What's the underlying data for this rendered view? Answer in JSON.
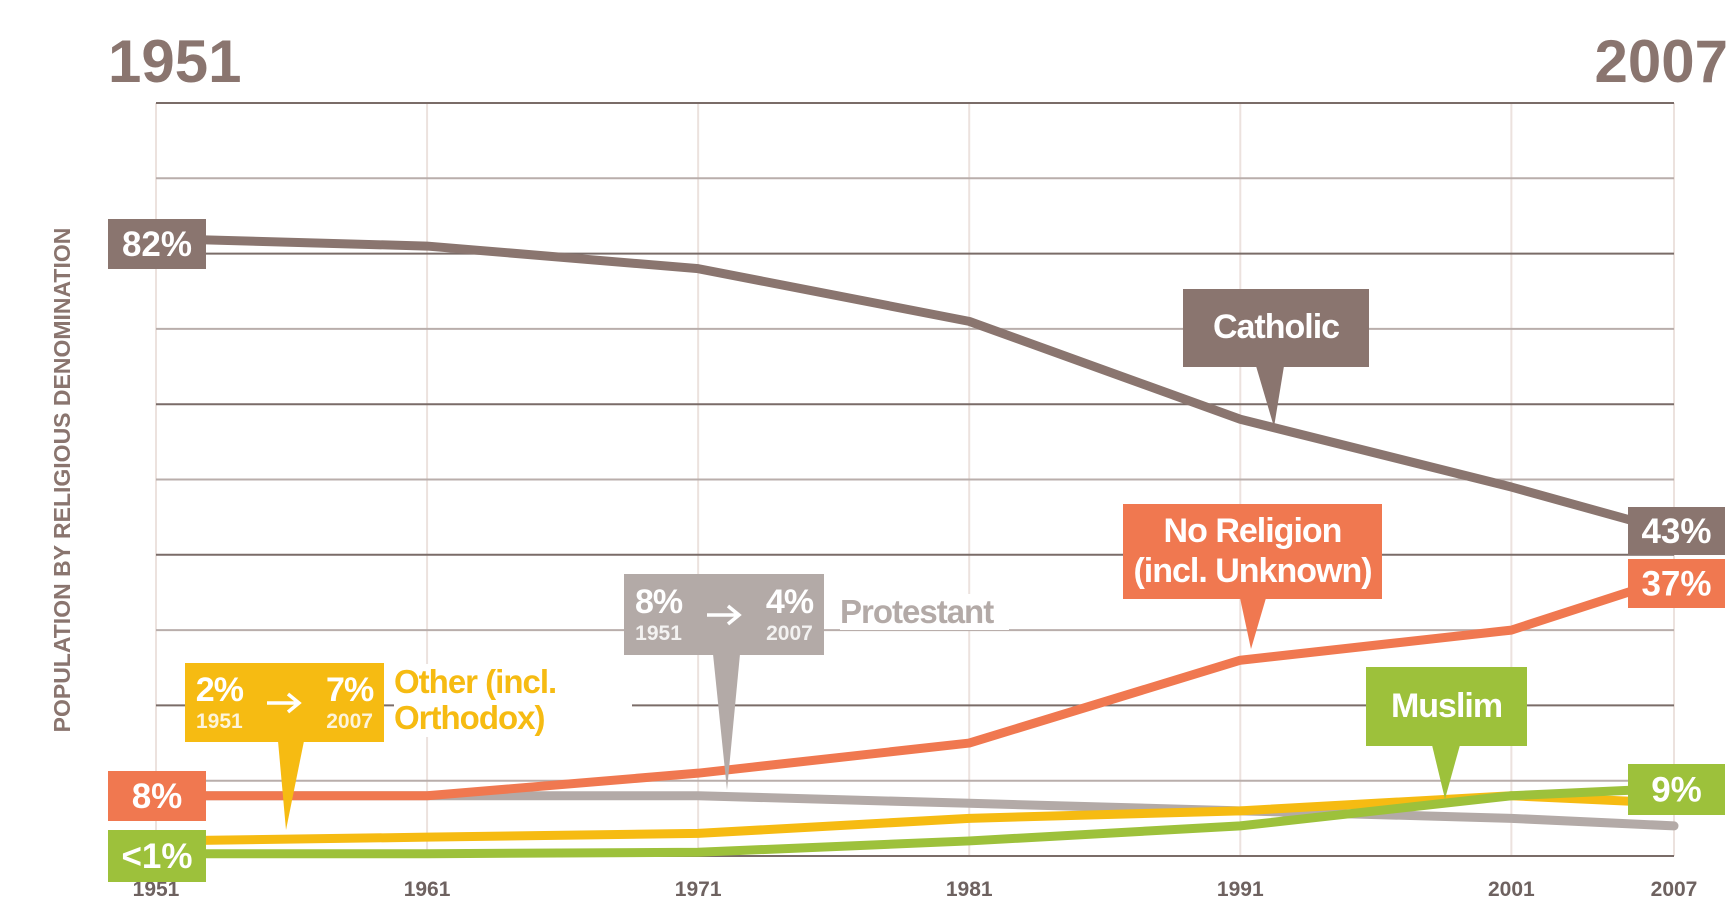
{
  "chart_data": {
    "type": "line",
    "y_label": "POPULATION BY RELIGIOUS DENOMINATION",
    "x": [
      1951,
      1961,
      1971,
      1981,
      1991,
      2001,
      2007
    ],
    "xlim": [
      1951,
      2007
    ],
    "xticks": [
      1951,
      1961,
      1971,
      1981,
      1991,
      2001,
      2007
    ],
    "ylim": [
      0,
      100
    ],
    "yticks": [
      0,
      10,
      20,
      30,
      40,
      50,
      60,
      70,
      80,
      90,
      100
    ],
    "grid": true,
    "series": [
      {
        "name": "Protestant",
        "color": "#b3aaa7",
        "values": [
          8,
          8,
          8,
          7,
          6,
          5,
          4
        ],
        "value_labels": [
          "8%",
          null,
          null,
          null,
          null,
          null,
          "4%"
        ]
      },
      {
        "name": "Other (incl. Orthodox)",
        "color": "#f6bb12",
        "values": [
          2,
          2.5,
          3,
          5,
          6,
          8,
          7
        ],
        "value_labels": [
          "2%",
          null,
          null,
          null,
          null,
          null,
          "7%"
        ]
      },
      {
        "name": "Muslim",
        "color": "#9dc13b",
        "values": [
          0.3,
          0.3,
          0.5,
          2,
          4,
          8,
          9
        ],
        "value_labels": [
          "<1%",
          null,
          null,
          null,
          null,
          null,
          "9%"
        ]
      },
      {
        "name": "No Religion (incl. Unknown)",
        "color": "#f07850",
        "values": [
          8,
          8,
          11,
          15,
          26,
          30,
          37
        ],
        "value_labels": [
          "8%",
          null,
          null,
          null,
          null,
          null,
          "37%"
        ]
      },
      {
        "name": "Catholic",
        "color": "#8a756f",
        "values": [
          82,
          81,
          78,
          71,
          58,
          49,
          43
        ],
        "value_labels": [
          "82%",
          null,
          null,
          null,
          null,
          null,
          "43%"
        ]
      }
    ]
  }
}
